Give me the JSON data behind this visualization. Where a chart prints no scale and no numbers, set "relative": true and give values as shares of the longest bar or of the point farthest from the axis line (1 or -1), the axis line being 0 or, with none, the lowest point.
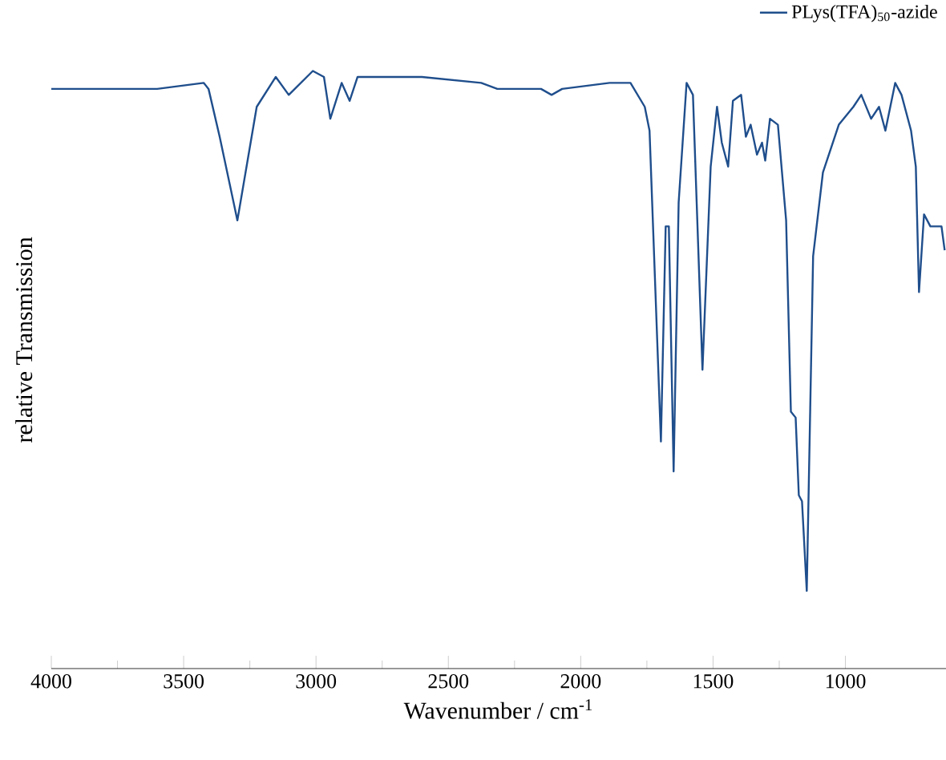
{
  "chart_data": {
    "type": "line",
    "relative": true,
    "xlabel": "Wavenumber / cm$^{-1}$",
    "ylabel": "relative Transmission",
    "xlim": [
      4000,
      620
    ],
    "xticks": [
      4000,
      3500,
      3000,
      2500,
      2000,
      1500,
      1000
    ],
    "grid": false,
    "legend": "top right",
    "line_style": "solid",
    "marker": "none",
    "series": [
      {
        "name": "PLys(TFA)$_{50}$-azide",
        "color": "#1f4e8c",
        "x": [
          4000,
          3800,
          3600,
          3424,
          3406,
          3364,
          3297,
          3224,
          3152,
          3103,
          3012,
          2970,
          2946,
          2903,
          2873,
          2843,
          2600,
          2376,
          2315,
          2150,
          2110,
          2070,
          1891,
          1812,
          1758,
          1740,
          1697,
          1679,
          1667,
          1649,
          1630,
          1600,
          1576,
          1540,
          1509,
          1485,
          1467,
          1443,
          1425,
          1394,
          1376,
          1358,
          1334,
          1315,
          1303,
          1285,
          1255,
          1224,
          1206,
          1188,
          1176,
          1164,
          1146,
          1122,
          1085,
          1025,
          970,
          940,
          903,
          873,
          849,
          812,
          788,
          752,
          734,
          722,
          703,
          679,
          649,
          637,
          625
        ],
        "values": [
          0.97,
          0.97,
          0.97,
          0.98,
          0.97,
          0.89,
          0.75,
          0.94,
          0.99,
          0.96,
          1.0,
          0.99,
          0.92,
          0.98,
          0.95,
          0.99,
          0.99,
          0.98,
          0.97,
          0.97,
          0.96,
          0.97,
          0.98,
          0.98,
          0.94,
          0.9,
          0.38,
          0.74,
          0.74,
          0.33,
          0.78,
          0.98,
          0.96,
          0.5,
          0.84,
          0.94,
          0.88,
          0.84,
          0.95,
          0.96,
          0.89,
          0.91,
          0.86,
          0.88,
          0.85,
          0.92,
          0.91,
          0.75,
          0.43,
          0.42,
          0.29,
          0.28,
          0.13,
          0.69,
          0.83,
          0.91,
          0.94,
          0.96,
          0.92,
          0.94,
          0.9,
          0.98,
          0.96,
          0.9,
          0.84,
          0.63,
          0.76,
          0.74,
          0.74,
          0.74,
          0.7
        ]
      }
    ]
  }
}
